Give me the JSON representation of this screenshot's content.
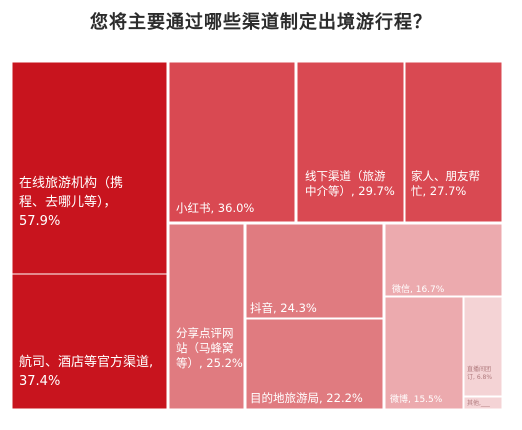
{
  "title": "您将主要通过哪些渠道制定出境游行程？",
  "colors": {
    "deep": "#c8141e",
    "mid": "#d94952",
    "soft": "#e07b80",
    "light": "#ecaaae",
    "pale": "#f4d3d5"
  },
  "chart_data": {
    "type": "treemap",
    "title": "您将主要通过哪些渠道制定出境游行程？",
    "unit": "%",
    "items": [
      {
        "name": "在线旅游机构（携程、去哪儿等）",
        "value": 57.9,
        "label_lines": [
          "在线旅游机构（携",
          "程、去哪儿等），",
          "57.9%"
        ]
      },
      {
        "name": "航司、酒店等官方渠道",
        "value": 37.4,
        "label_lines": [
          "航司、酒店等官方渠道,",
          "37.4%"
        ]
      },
      {
        "name": "小红书",
        "value": 36.0,
        "label_lines": [
          "小红书, 36.0%"
        ]
      },
      {
        "name": "线下渠道（旅游中介等）",
        "value": 29.7,
        "label_lines": [
          "线下渠道（旅游",
          "中介等）, 29.7%"
        ]
      },
      {
        "name": "家人、朋友帮忙",
        "value": 27.7,
        "label_lines": [
          "家人、朋友帮",
          "忙, 27.7%"
        ]
      },
      {
        "name": "分享点评网站（马蜂窝等）",
        "value": 25.2,
        "label_lines": [
          "分享点评网",
          "站（马蜂窝",
          "等）, 25.2%"
        ]
      },
      {
        "name": "抖音",
        "value": 24.3,
        "label_lines": [
          "抖音, 24.3%"
        ]
      },
      {
        "name": "目的地旅游局",
        "value": 22.2,
        "label_lines": [
          "目的地旅游局, 22.2%"
        ]
      },
      {
        "name": "微信",
        "value": 16.7,
        "label_lines": [
          "微信, 16.7%"
        ]
      },
      {
        "name": "微博",
        "value": 15.5,
        "label_lines": [
          "微博, 15.5%"
        ]
      },
      {
        "name": "直播间团订",
        "value": 6.8,
        "label_lines": [
          "直播间团",
          "订, 6.8%"
        ]
      },
      {
        "name": "其他",
        "value": null,
        "label_lines": [
          "其他,___"
        ]
      }
    ]
  }
}
